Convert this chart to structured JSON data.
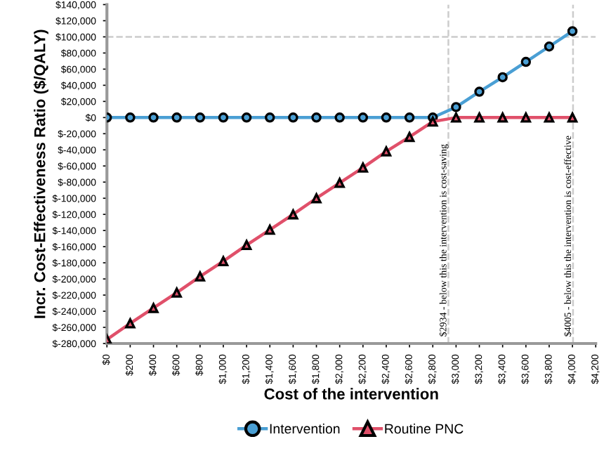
{
  "chart_data": {
    "type": "line",
    "xlabel": "Cost of the intervention",
    "ylabel": "Incr. Cost-Effectiveness Ratio ($/QALY)",
    "x": [
      0,
      200,
      400,
      600,
      800,
      1000,
      1200,
      1400,
      1600,
      1800,
      2000,
      2200,
      2400,
      2600,
      2800,
      3000,
      3200,
      3400,
      3600,
      3800,
      4000
    ],
    "series": [
      {
        "name": "Intervention",
        "color": "#4a9fd4",
        "marker": "circle",
        "values": [
          0,
          0,
          0,
          0,
          0,
          0,
          0,
          0,
          0,
          0,
          0,
          0,
          0,
          0,
          0,
          13000,
          32000,
          50000,
          69000,
          88000,
          107000
        ]
      },
      {
        "name": "Routine PNC",
        "color": "#e0506a",
        "marker": "triangle",
        "values": [
          -275000,
          -255000,
          -236000,
          -217000,
          -197000,
          -178000,
          -158000,
          -139000,
          -120000,
          -100000,
          -81000,
          -62000,
          -42000,
          -24000,
          -5000,
          0,
          0,
          0,
          0,
          0,
          0
        ]
      }
    ],
    "xlim": [
      0,
      4200
    ],
    "xticks": [
      {
        "value": 0,
        "label": "$0"
      },
      {
        "value": 200,
        "label": "$200"
      },
      {
        "value": 400,
        "label": "$400"
      },
      {
        "value": 600,
        "label": "$600"
      },
      {
        "value": 800,
        "label": "$800"
      },
      {
        "value": 1000,
        "label": "$1,000"
      },
      {
        "value": 1200,
        "label": "$1,200"
      },
      {
        "value": 1400,
        "label": "$1,400"
      },
      {
        "value": 1600,
        "label": "$1,600"
      },
      {
        "value": 1800,
        "label": "$1,800"
      },
      {
        "value": 2000,
        "label": "$2,000"
      },
      {
        "value": 2200,
        "label": "$2,200"
      },
      {
        "value": 2400,
        "label": "$2,400"
      },
      {
        "value": 2600,
        "label": "$2,600"
      },
      {
        "value": 2800,
        "label": "$2,800"
      },
      {
        "value": 3000,
        "label": "$3,000"
      },
      {
        "value": 3200,
        "label": "$3,200"
      },
      {
        "value": 3400,
        "label": "$3,400"
      },
      {
        "value": 3600,
        "label": "$3,600"
      },
      {
        "value": 3800,
        "label": "$3,800"
      },
      {
        "value": 4000,
        "label": "$4,000"
      },
      {
        "value": 4200,
        "label": "$4,200"
      }
    ],
    "ylim": [
      -280000,
      140000
    ],
    "yticks": [
      {
        "value": -280000,
        "label": "$-280,000"
      },
      {
        "value": -260000,
        "label": "$-260,000"
      },
      {
        "value": -240000,
        "label": "$-240,000"
      },
      {
        "value": -220000,
        "label": "$-220,000"
      },
      {
        "value": -200000,
        "label": "$-200,000"
      },
      {
        "value": -180000,
        "label": "$-180,000"
      },
      {
        "value": -160000,
        "label": "$-160,000"
      },
      {
        "value": -140000,
        "label": "$-140,000"
      },
      {
        "value": -120000,
        "label": "$-120,000"
      },
      {
        "value": -100000,
        "label": "$-100,000"
      },
      {
        "value": -80000,
        "label": "$-80,000"
      },
      {
        "value": -60000,
        "label": "$-60,000"
      },
      {
        "value": -40000,
        "label": "$-40,000"
      },
      {
        "value": -20000,
        "label": "$-20,000"
      },
      {
        "value": 0,
        "label": "$0"
      },
      {
        "value": 20000,
        "label": "$20,000"
      },
      {
        "value": 40000,
        "label": "$40,000"
      },
      {
        "value": 60000,
        "label": "$60,000"
      },
      {
        "value": 80000,
        "label": "$80,000"
      },
      {
        "value": 100000,
        "label": "$100,000"
      },
      {
        "value": 120000,
        "label": "$120,000"
      },
      {
        "value": 140000,
        "label": "$140,000"
      }
    ],
    "ref_lines": [
      {
        "axis": "x",
        "value": 2934,
        "label": "$2934 - below this the intervention is cost-saving",
        "color": "#cccccc",
        "line_style": "dashed"
      },
      {
        "axis": "x",
        "value": 4005,
        "label": "$4005 - below this the intervention is cost-effective",
        "color": "#cccccc",
        "line_style": "dashed"
      },
      {
        "axis": "y",
        "value": 100000,
        "label": null,
        "color": "#cccccc",
        "line_style": "dashed"
      }
    ],
    "grid": false,
    "legend": "bottom",
    "line_style": "solid"
  }
}
